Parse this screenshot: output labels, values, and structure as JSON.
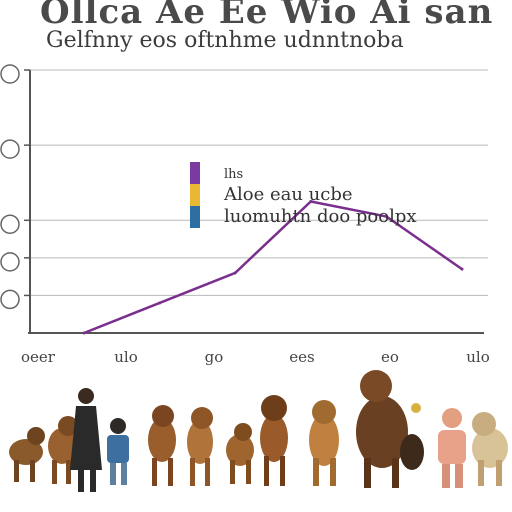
{
  "title": "Ollca Ae Ee Wio Ai san",
  "subtitle": "Gelfnny eos oftnhme udnntnoba",
  "colors": {
    "line": "#7a2f8f",
    "axis": "#555555",
    "grid": "#b8b8b8",
    "legend_purple": "#7a3aa0",
    "legend_yellow": "#e8b832",
    "legend_blue": "#2e6fa3"
  },
  "chart_data": {
    "type": "line",
    "title": "Ollca Ae Ee Wio Ai san",
    "subtitle": "Gelfnny eos oftnhme udnntnoba",
    "categories": [
      "oeer",
      "ulo",
      "go",
      "ees",
      "eo",
      "ulo"
    ],
    "x": [
      0,
      1,
      2,
      3,
      4,
      5
    ],
    "series": [
      {
        "name": "lhs",
        "values": [
          0.0,
          0.4,
          0.8,
          1.75,
          1.55,
          0.85
        ]
      }
    ],
    "legend": [
      {
        "label": "lhs",
        "color": "#7a3aa0"
      },
      {
        "label": "Aloe eau ucbe",
        "color": "#e8b832"
      },
      {
        "label": "luomuhtn doo poolpx",
        "color": "#2e6fa3"
      }
    ],
    "ylim": [
      0,
      3.5
    ],
    "grid": true,
    "legend_position": "center"
  }
}
